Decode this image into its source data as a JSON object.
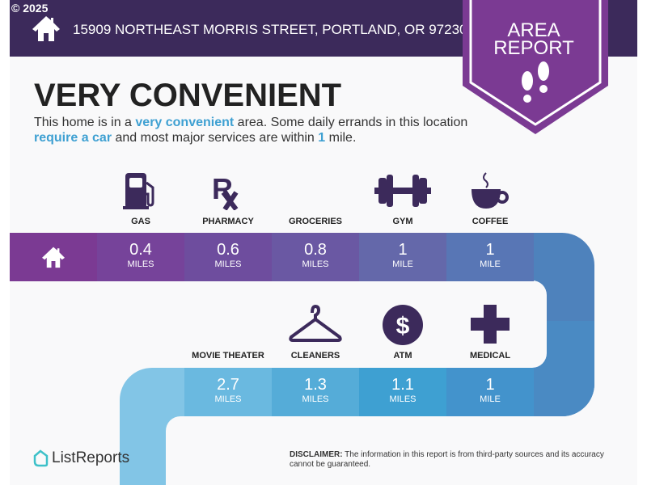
{
  "header": {
    "copyright": "© 2025",
    "address": "15909 NORTHEAST MORRIS STREET, PORTLAND, OR 97230",
    "badge_line1": "AREA",
    "badge_line2": "REPORT"
  },
  "title": "VERY CONVENIENT",
  "description": {
    "p1": "This home is in a ",
    "h1": "very convenient",
    "p2": " area. Some daily errands in this location ",
    "h2": "require a car",
    "p3": " and most major services are within ",
    "h3": "1",
    "p4": " mile."
  },
  "row1": [
    {
      "label": "GAS",
      "value": "0.4",
      "unit": "MILES",
      "icon": "gas-pump-icon",
      "color": "#76439a"
    },
    {
      "label": "PHARMACY",
      "value": "0.6",
      "unit": "MILES",
      "icon": "rx-icon",
      "color": "#6e4d9e"
    },
    {
      "label": "GROCERIES",
      "value": "0.8",
      "unit": "MILES",
      "icon": "grocery-icon",
      "color": "#6a58a3"
    },
    {
      "label": "GYM",
      "value": "1",
      "unit": "MILE",
      "icon": "dumbbell-icon",
      "color": "#6468aa"
    },
    {
      "label": "COFFEE",
      "value": "1",
      "unit": "MILE",
      "icon": "coffee-cup-icon",
      "color": "#5876b5"
    }
  ],
  "row2": [
    {
      "label": "MOVIE THEATER",
      "value": "2.7",
      "unit": "MILES",
      "icon": "movie-icon",
      "color": "#6ab9e0"
    },
    {
      "label": "CLEANERS",
      "value": "1.3",
      "unit": "MILES",
      "icon": "hanger-icon",
      "color": "#55acd8"
    },
    {
      "label": "ATM",
      "value": "1.1",
      "unit": "MILES",
      "icon": "dollar-icon",
      "color": "#3ea0d2"
    },
    {
      "label": "MEDICAL",
      "value": "1",
      "unit": "MILE",
      "icon": "medical-cross-icon",
      "color": "#4393cc"
    }
  ],
  "footer": {
    "logo": "ListReports",
    "disclaimer_label": "DISCLAIMER:",
    "disclaimer": " The information in this report is from third-party sources and its accuracy cannot be guaranteed."
  },
  "colors": {
    "header": "#3c2a5b",
    "badge": "#7b3a93",
    "accent": "#3ea0d2",
    "icon": "#3c2a5b"
  }
}
